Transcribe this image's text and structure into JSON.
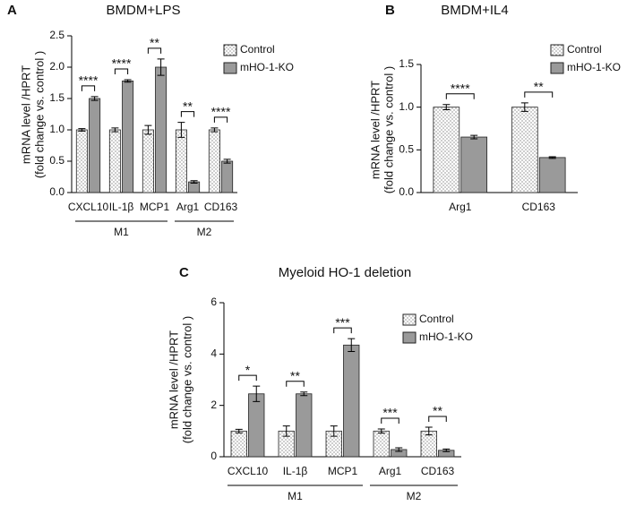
{
  "chart_data": [
    {
      "type": "bar",
      "panel": "A",
      "title": "BMDM+LPS",
      "ylabel": [
        "mRNA level /HPRT",
        "(fold change vs. control )"
      ],
      "categories": [
        "CXCL10",
        "IL-1β",
        "MCP1",
        "Arg1",
        "CD163"
      ],
      "groups": [
        "M1",
        "M1",
        "M1",
        "M2",
        "M2"
      ],
      "significance": [
        "****",
        "****",
        "**",
        "**",
        "****"
      ],
      "series": [
        {
          "name": "Control",
          "color": "#ffffff",
          "values": [
            1.0,
            1.0,
            1.0,
            1.0,
            1.0
          ],
          "errors": [
            0.02,
            0.03,
            0.07,
            0.12,
            0.03
          ]
        },
        {
          "name": "mHO-1-KO",
          "color": "#9a9a9a",
          "values": [
            1.5,
            1.78,
            2.0,
            0.17,
            0.5
          ],
          "errors": [
            0.03,
            0.02,
            0.13,
            0.02,
            0.03
          ]
        }
      ],
      "ylim": [
        0,
        2.5
      ],
      "yticks": [
        {
          "value": 0,
          "label": "0.0"
        },
        0.5,
        {
          "value": 1,
          "label": "1.0"
        },
        1.5,
        {
          "value": 2,
          "label": "2.0"
        },
        2.5
      ]
    },
    {
      "type": "bar",
      "panel": "B",
      "title": "BMDM+IL4",
      "ylabel": [
        "mRNA level /HPRT",
        "(fold change vs. control )"
      ],
      "categories": [
        "Arg1",
        "CD163"
      ],
      "significance": [
        "****",
        "**"
      ],
      "series": [
        {
          "name": "Control",
          "color": "#ffffff",
          "values": [
            1.0,
            1.0
          ],
          "errors": [
            0.03,
            0.05
          ]
        },
        {
          "name": "mHO-1-KO",
          "color": "#9a9a9a",
          "values": [
            0.65,
            0.41
          ],
          "errors": [
            0.02,
            0.01
          ]
        }
      ],
      "ylim": [
        0,
        1.5
      ],
      "yticks": [
        {
          "value": 0,
          "label": "0.0"
        },
        0.5,
        {
          "value": 1,
          "label": "1.0"
        },
        1.5
      ]
    },
    {
      "type": "bar",
      "panel": "C",
      "title": "Myeloid HO-1 deletion",
      "ylabel": [
        "mRNA level /HPRT",
        "(fold change vs. control )"
      ],
      "categories": [
        "CXCL10",
        "IL-1β",
        "MCP1",
        "Arg1",
        "CD163"
      ],
      "groups": [
        "M1",
        "M1",
        "M1",
        "M2",
        "M2"
      ],
      "significance": [
        "*",
        "**",
        "***",
        "***",
        "**"
      ],
      "series": [
        {
          "name": "Control",
          "color": "#ffffff",
          "values": [
            1.0,
            1.0,
            1.0,
            1.0,
            1.0
          ],
          "errors": [
            0.07,
            0.2,
            0.2,
            0.08,
            0.15
          ]
        },
        {
          "name": "mHO-1-KO",
          "color": "#9a9a9a",
          "values": [
            2.45,
            2.45,
            4.35,
            0.28,
            0.25
          ],
          "errors": [
            0.3,
            0.07,
            0.25,
            0.07,
            0.05
          ]
        }
      ],
      "ylim": [
        0,
        6
      ],
      "yticks": [
        0,
        2,
        4,
        6
      ]
    }
  ]
}
